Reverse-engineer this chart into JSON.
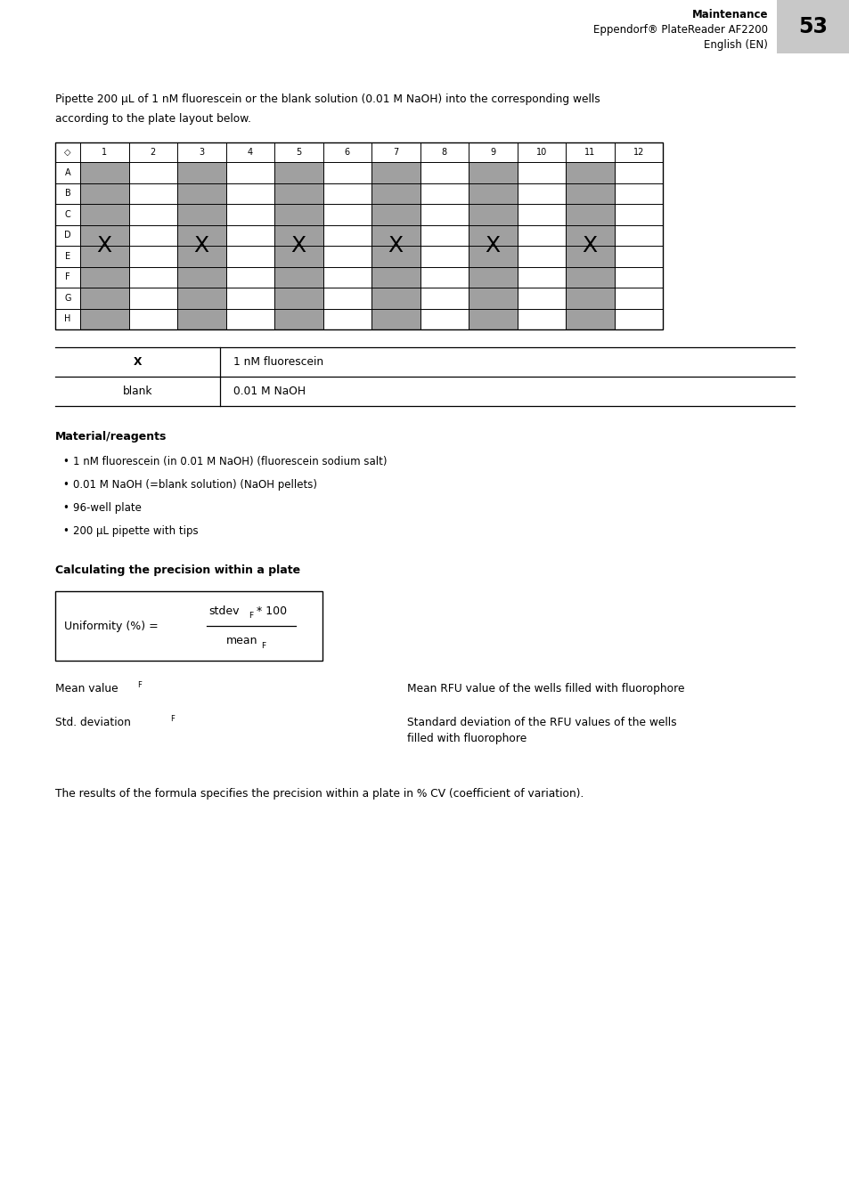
{
  "page_width": 9.54,
  "page_height": 13.5,
  "bg_color": "#ffffff",
  "header": {
    "maintenance": "Maintenance",
    "line2": "Eppendorf® PlateReader AF2200",
    "line3": "English (EN)",
    "page_num": "53",
    "page_num_bg": "#c8c8c8"
  },
  "intro_text_line1": "Pipette 200 μL of 1 nM fluorescein or the blank solution (0.01 M NaOH) into the corresponding wells",
  "intro_text_line2": "according to the plate layout below.",
  "plate": {
    "col_labels": [
      "1",
      "2",
      "3",
      "4",
      "5",
      "6",
      "7",
      "8",
      "9",
      "10",
      "11",
      "12"
    ],
    "row_labels": [
      "A",
      "B",
      "C",
      "D",
      "E",
      "F",
      "G",
      "H"
    ],
    "gray_cols_1indexed": [
      1,
      3,
      5,
      7,
      9,
      11
    ],
    "gray_color": "#a0a0a0"
  },
  "legend_rows": [
    {
      "key": "X",
      "key_bold": true,
      "value": "1 nM fluorescein"
    },
    {
      "key": "blank",
      "key_bold": false,
      "value": "0.01 M NaOH"
    }
  ],
  "material_heading": "Material/reagents",
  "bullets": [
    "1 nM fluorescein (in 0.01 M NaOH) (fluorescein sodium salt)",
    "0.01 M NaOH (=blank solution) (NaOH pellets)",
    "96-well plate",
    "200 μL pipette with tips"
  ],
  "calc_heading": "Calculating the precision within a plate",
  "vars_col1": [
    "Mean value",
    "Std. deviation"
  ],
  "vars_col2": [
    "Mean RFU value of the wells filled with fluorophore",
    "Standard deviation of the RFU values of the wells\nfilled with fluorophore"
  ],
  "footer": "The results of the formula specifies the precision within a plate in % CV (coefficient of variation)."
}
